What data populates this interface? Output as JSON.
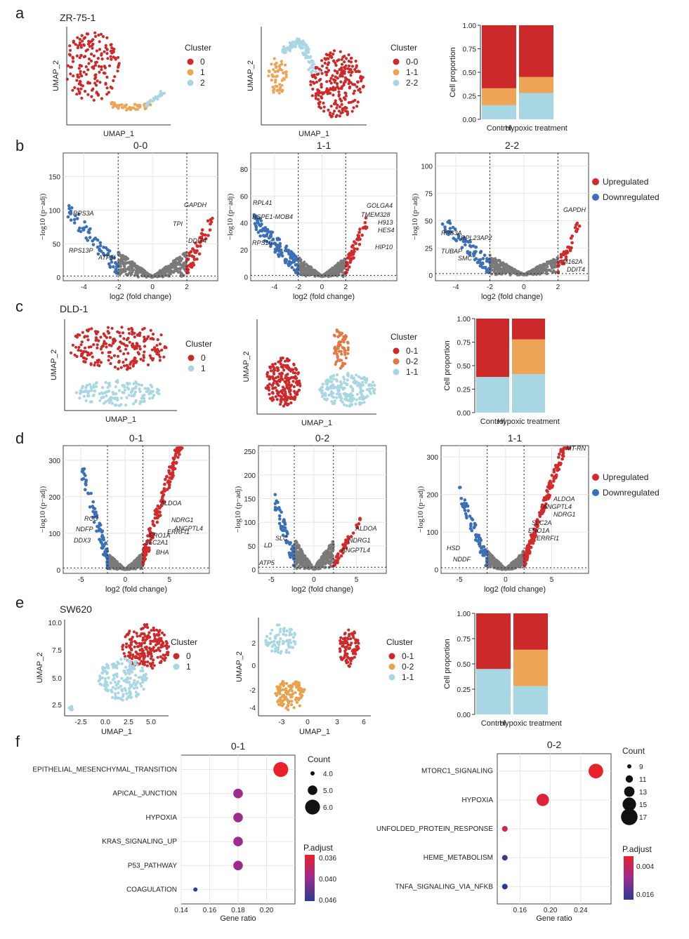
{
  "panels": {
    "a": "a",
    "b": "b",
    "c": "c",
    "d": "d",
    "e": "e",
    "f": "f"
  },
  "cell_lines": {
    "a": "ZR-75-1",
    "c": "DLD-1",
    "e": "SW620"
  },
  "common": {
    "umap_x": "UMAP_1",
    "umap_y": "UMAP_2",
    "cluster_title": "Cluster",
    "cell_prop": "Cell proportion",
    "volcano_x": "log2 (fold change)",
    "volcano_y": "−log10 (p−adj)",
    "up": "Upregulated",
    "down": "Downregulated",
    "control": "Control",
    "hypoxic": "Hypoxic treatment",
    "gene_ratio": "Gene ratio",
    "count": "Count",
    "padj": "P.adjust"
  },
  "colors": {
    "red": "#cc2a2a",
    "orange": "#eea457",
    "blue": "#a8d7e3",
    "volcano_up": "#d12b2b",
    "volcano_down": "#3b6fb6",
    "grey": "#7a7a7a"
  },
  "chart_data": [
    {
      "id": "a-umap1",
      "type": "scatter",
      "xlabel": "UMAP_1",
      "ylabel": "UMAP_2",
      "legend_title": "Cluster",
      "categories": [
        "0",
        "1",
        "2"
      ]
    },
    {
      "id": "a-umap2",
      "type": "scatter",
      "xlabel": "UMAP_1",
      "ylabel": "UMAP_2",
      "legend_title": "Cluster",
      "categories": [
        "0-0",
        "1-1",
        "2-2"
      ]
    },
    {
      "id": "a-bar",
      "type": "bar",
      "stacked": true,
      "ylabel": "Cell proportion",
      "categories": [
        "Control",
        "Hypoxic treatment"
      ],
      "yticks": [
        "0.00",
        "0.25",
        "0.50",
        "0.75",
        "1.00"
      ],
      "series": [
        {
          "name": "2-2",
          "values": [
            0.15,
            0.28
          ]
        },
        {
          "name": "1-1",
          "values": [
            0.18,
            0.17
          ]
        },
        {
          "name": "0-0",
          "values": [
            0.67,
            0.55
          ]
        }
      ]
    },
    {
      "id": "b-0-0",
      "type": "scatter",
      "title": "0-0",
      "xlabel": "log2 (fold change)",
      "ylabel": "−log10 (p−adj)",
      "xticks": [
        "-4",
        "-2",
        "0",
        "2"
      ],
      "yticks": [
        "0",
        "50",
        "100",
        "150"
      ],
      "up": [
        "GAPDH",
        "TPI",
        "DDIT4"
      ],
      "down": [
        "RPS3A",
        "RPS13P",
        "ATP5I"
      ]
    },
    {
      "id": "b-1-1",
      "type": "scatter",
      "title": "1-1",
      "xlabel": "log2 (fold change)",
      "ylabel": "−log10 (p−adj)",
      "xticks": [
        "-4",
        "-2",
        "0",
        "2"
      ],
      "yticks": [
        "0",
        "20",
        "40",
        "60",
        "80"
      ],
      "up": [
        "GOLGA4",
        "TMEM328",
        "H913",
        "HES4",
        "HIP10"
      ],
      "down": [
        "RPL41",
        "HSPE1-MOB4",
        "RPS10"
      ]
    },
    {
      "id": "b-2-2",
      "type": "scatter",
      "title": "2-2",
      "xlabel": "log2 (fold change)",
      "ylabel": "−log10 (p−adj)",
      "xticks": [
        "-4",
        "-2",
        "0",
        "2"
      ],
      "yticks": [
        "0",
        "25",
        "50",
        "75",
        "100"
      ],
      "up": [
        "GAPDH",
        "M162A",
        "DDIT4"
      ],
      "down": [
        "RPS3A",
        "RPL23AP2",
        "TUBAP",
        "SMC"
      ],
      "legend": [
        "Upregulated",
        "Downregulated"
      ]
    },
    {
      "id": "c-umap1",
      "type": "scatter",
      "xlabel": "UMAP_1",
      "ylabel": "UMAP_2",
      "legend_title": "Cluster",
      "categories": [
        "0",
        "1"
      ]
    },
    {
      "id": "c-umap2",
      "type": "scatter",
      "xlabel": "UMAP_1",
      "ylabel": "UMAP_2",
      "legend_title": "Cluster",
      "categories": [
        "0-1",
        "0-2",
        "1-1"
      ]
    },
    {
      "id": "c-bar",
      "type": "bar",
      "stacked": true,
      "ylabel": "Cell proportion",
      "categories": [
        "Control",
        "Hypoxic treatment"
      ],
      "yticks": [
        "0.00",
        "0.25",
        "0.50",
        "0.75",
        "1.00"
      ],
      "series": [
        {
          "name": "1-1",
          "values": [
            0.38,
            0.41
          ]
        },
        {
          "name": "0-2",
          "values": [
            0.0,
            0.37
          ]
        },
        {
          "name": "0-1",
          "values": [
            0.62,
            0.22
          ]
        }
      ]
    },
    {
      "id": "d-0-1",
      "type": "scatter",
      "title": "0-1",
      "xlabel": "log2 (fold change)",
      "ylabel": "−log10 (p−adj)",
      "xticks": [
        "-5",
        "0",
        "5"
      ],
      "yticks": [
        "0",
        "100",
        "200",
        "300"
      ],
      "up": [
        "ALDOA",
        "NDRG1",
        "ANGPTL4",
        "ERO1A",
        "SLC2A1",
        "BHA",
        "ERRFI1"
      ],
      "down": [
        "RCC",
        "NDFP",
        "DDX3"
      ]
    },
    {
      "id": "d-0-2",
      "type": "scatter",
      "title": "0-2",
      "xlabel": "log2 (fold change)",
      "ylabel": "−log10 (p−adj)",
      "xticks": [
        "-5",
        "0",
        "5"
      ],
      "yticks": [
        "0",
        "50",
        "100",
        "150",
        "200",
        "250"
      ],
      "up": [
        "ALDOA",
        "NDRG1",
        "ANGPTL4"
      ],
      "down": [
        "SLC",
        "LD",
        "ATP5"
      ]
    },
    {
      "id": "d-1-1",
      "type": "scatter",
      "title": "1-1",
      "xlabel": "log2 (fold change)",
      "ylabel": "−log10 (p−adj)",
      "xticks": [
        "-5",
        "0",
        "5"
      ],
      "yticks": [
        "0",
        "100",
        "200",
        "300"
      ],
      "up": [
        "MT-RN",
        "ALDOA",
        "ANGPTL4",
        "NDRG1",
        "SLC2A",
        "ERO1A",
        "ERRFI1"
      ],
      "down": [
        "HSD",
        "NDDF"
      ],
      "legend": [
        "Upregulated",
        "Downregulated"
      ]
    },
    {
      "id": "e-umap1",
      "type": "scatter",
      "xlabel": "UMAP_1",
      "ylabel": "UMAP_2",
      "legend_title": "Cluster",
      "categories": [
        "0",
        "1"
      ],
      "xticks": [
        "-2.5",
        "0.0",
        "2.5",
        "5.0"
      ],
      "yticks": [
        "2.5",
        "5.0",
        "7.5",
        "10.0"
      ]
    },
    {
      "id": "e-umap2",
      "type": "scatter",
      "xlabel": "UMAP_1",
      "ylabel": "UMAP_2",
      "legend_title": "Cluster",
      "categories": [
        "0-1",
        "0-2",
        "1-1"
      ],
      "xticks": [
        "-3",
        "0",
        "3",
        "6"
      ],
      "yticks": [
        "-4",
        "-2",
        "0",
        "2"
      ]
    },
    {
      "id": "e-bar",
      "type": "bar",
      "stacked": true,
      "ylabel": "Cell proportion",
      "categories": [
        "Control",
        "Hypoxic treatment"
      ],
      "yticks": [
        "0.00",
        "0.25",
        "0.50",
        "0.75",
        "1.00"
      ],
      "series": [
        {
          "name": "1-1",
          "values": [
            0.45,
            0.28
          ]
        },
        {
          "name": "0-2",
          "values": [
            0.0,
            0.36
          ]
        },
        {
          "name": "0-1",
          "values": [
            0.55,
            0.36
          ]
        }
      ]
    },
    {
      "id": "f-0-1",
      "type": "scatter",
      "title": "0-1",
      "xlabel": "Gene ratio",
      "xlim": [
        0.14,
        0.22
      ],
      "xticks": [
        "0.14",
        "0.16",
        "0.18",
        "0.20"
      ],
      "categories": [
        "EPITHELIAL_MESENCHYMAL_TRANSITION",
        "APICAL_JUNCTION",
        "HYPOXIA",
        "KRAS_SIGNALING_UP",
        "P53_PATHWAY",
        "COAGULATION"
      ],
      "x": [
        0.21,
        0.18,
        0.18,
        0.18,
        0.18,
        0.15
      ],
      "count": [
        6,
        5,
        5,
        5,
        5,
        4
      ],
      "padj": [
        0.036,
        0.041,
        0.041,
        0.041,
        0.041,
        0.046
      ],
      "count_legend": [
        "4.0",
        "5.0",
        "6.0"
      ],
      "padj_legend": [
        "0.036",
        "0.040",
        "0.046"
      ]
    },
    {
      "id": "f-0-2",
      "type": "scatter",
      "title": "0-2",
      "xlabel": "Gene ratio",
      "xlim": [
        0.13,
        0.28
      ],
      "xticks": [
        "0.16",
        "0.20",
        "0.24"
      ],
      "categories": [
        "MTORC1_SIGNALING",
        "HYPOXIA",
        "UNFOLDED_PROTEIN_RESPONSE",
        "HEME_METABOLISM",
        "TNFA_SIGNALING_VIA_NFKB"
      ],
      "x": [
        0.26,
        0.19,
        0.14,
        0.14,
        0.14
      ],
      "count": [
        17,
        15,
        9,
        9,
        9
      ],
      "padj": [
        0.002,
        0.003,
        0.004,
        0.016,
        0.017
      ],
      "count_legend": [
        "9",
        "11",
        "13",
        "15",
        "17"
      ],
      "padj_legend": [
        "0.004",
        "0.016"
      ]
    }
  ]
}
